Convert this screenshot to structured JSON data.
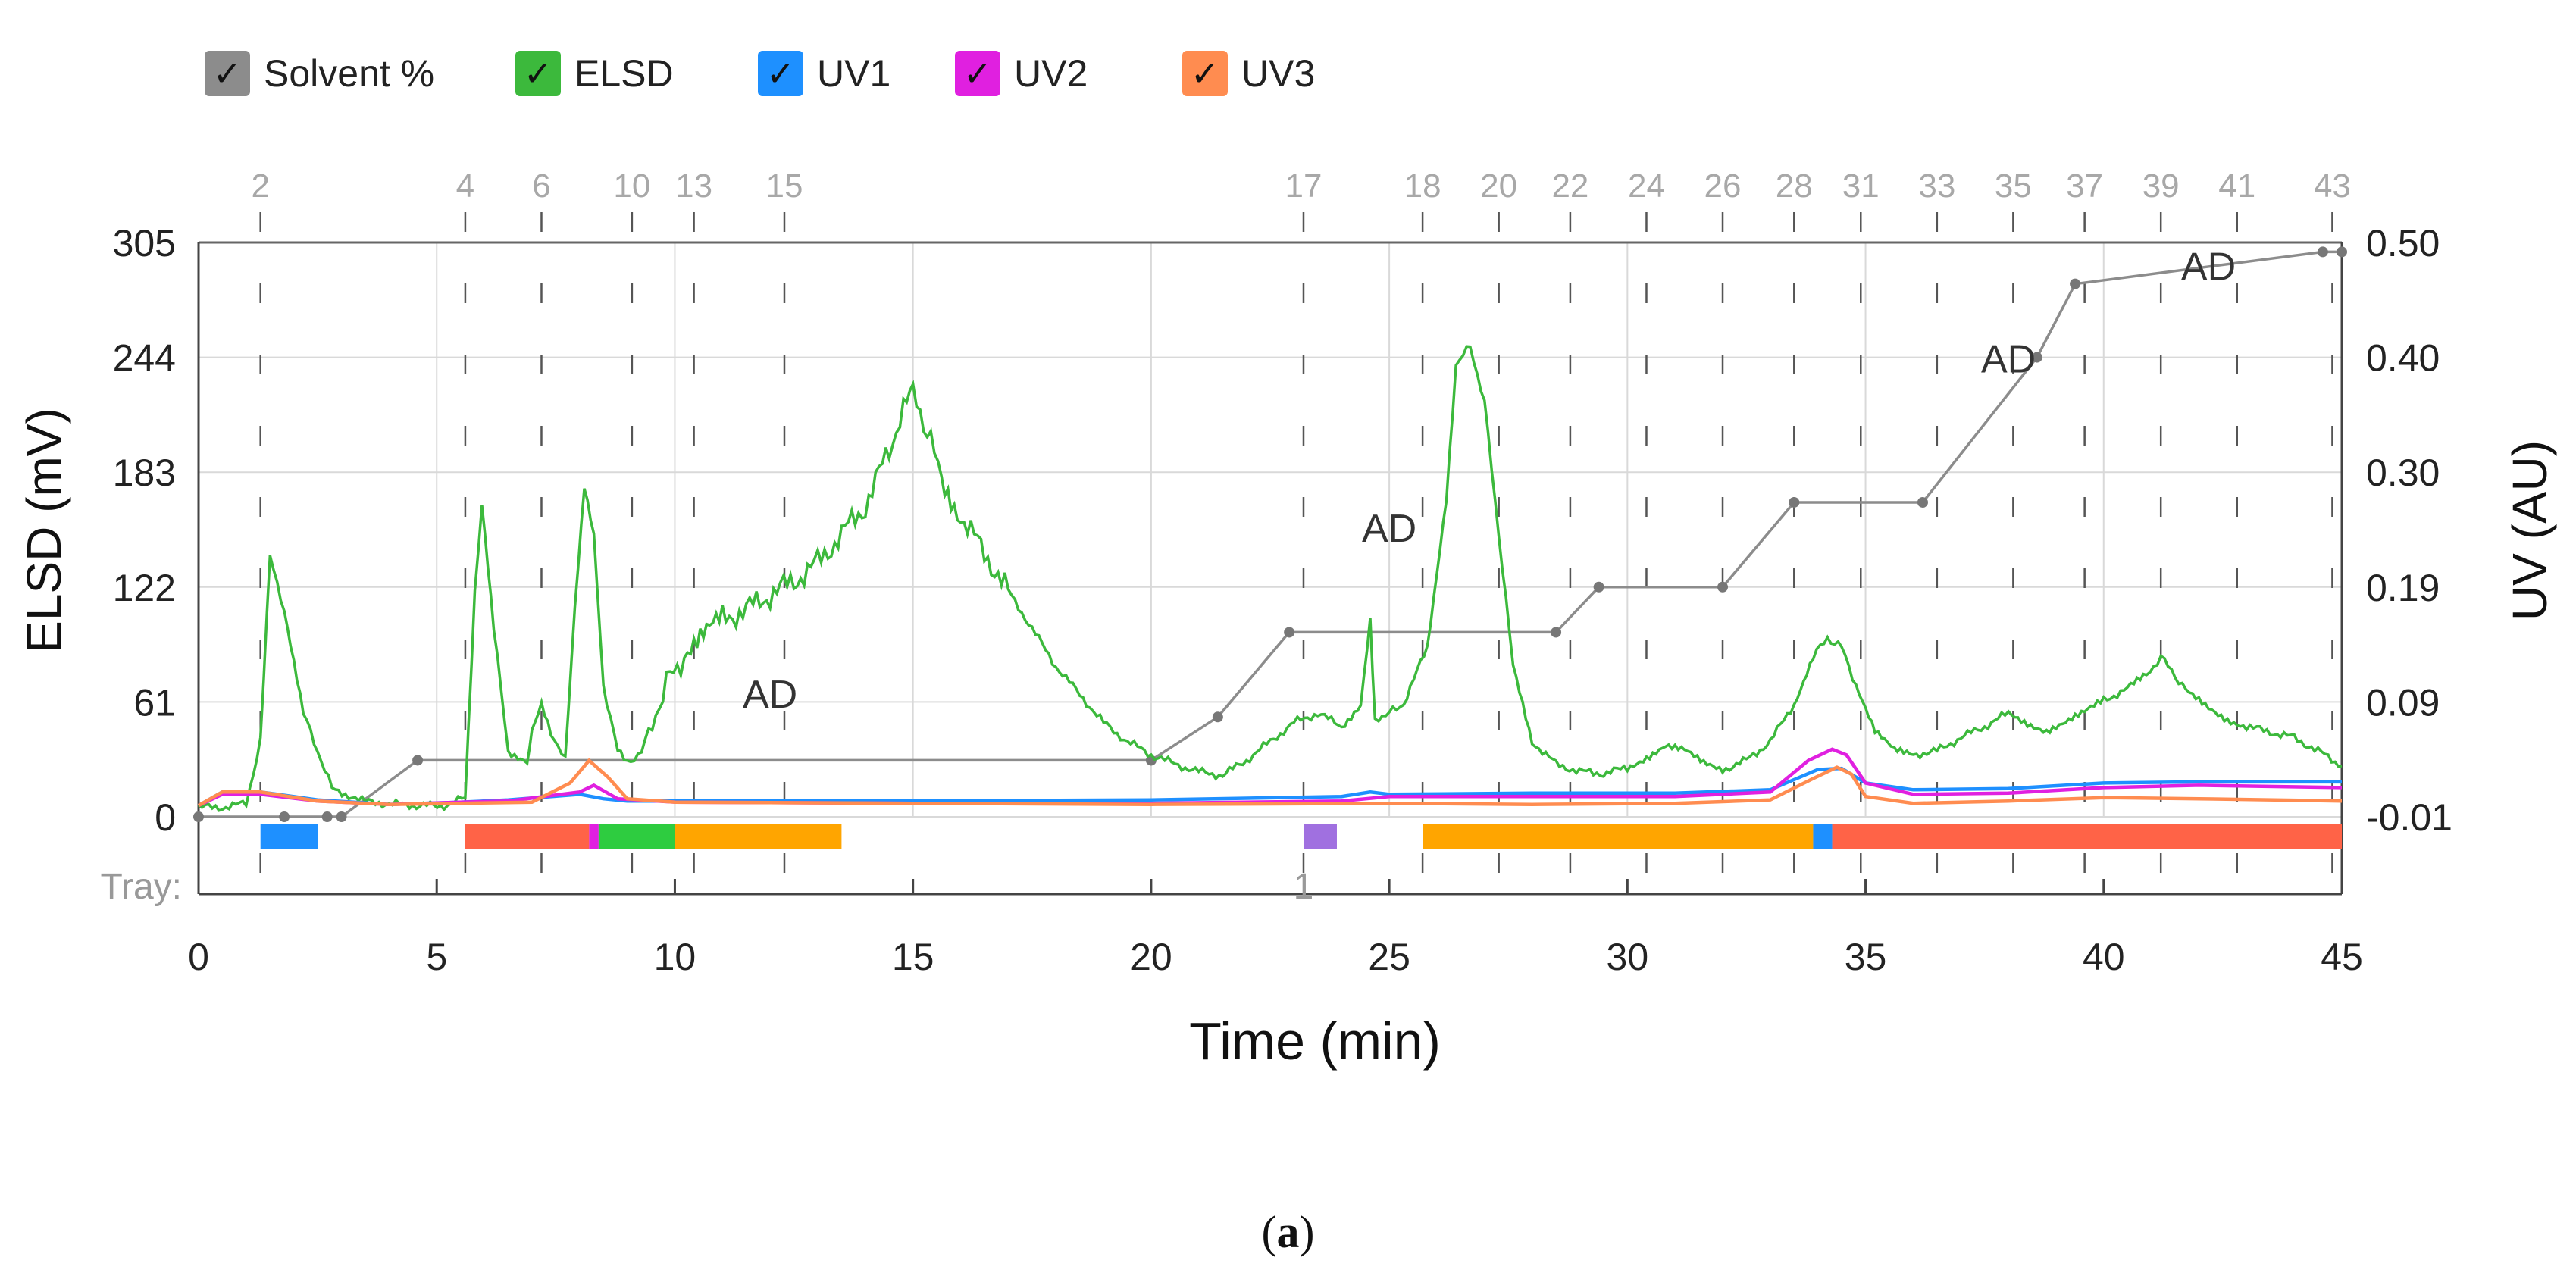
{
  "legend": [
    {
      "name": "Solvent %",
      "color": "#8c8c8c",
      "check": "✓"
    },
    {
      "name": "ELSD",
      "color": "#3cb93c",
      "check": "✓"
    },
    {
      "name": "UV1",
      "color": "#1e90ff",
      "check": "✓"
    },
    {
      "name": "UV2",
      "color": "#e020e0",
      "check": "✓"
    },
    {
      "name": "UV3",
      "color": "#ff8c50",
      "check": "✓"
    }
  ],
  "caption": {
    "open": "(",
    "letter": "a",
    "close": ")"
  },
  "chart_data": {
    "type": "line",
    "xlabel": "Time (min)",
    "ylabel": "ELSD (mV)",
    "y2label": "UV (AU)",
    "tray_label": "Tray:",
    "tray_numbers": [
      {
        "x": 23.2,
        "label": "1"
      }
    ],
    "xlim": [
      0,
      45
    ],
    "ylim": [
      0,
      305
    ],
    "xticks": [
      0,
      5,
      10,
      15,
      20,
      25,
      30,
      35,
      40,
      45
    ],
    "yticks": [
      0,
      61,
      122,
      183,
      244,
      305
    ],
    "y2ticks": [
      "-0.01",
      "0.09",
      "0.19",
      "0.30",
      "0.40",
      "0.50"
    ],
    "fractions": [
      {
        "label": "2",
        "x": 1.3
      },
      {
        "label": "4",
        "x": 5.6
      },
      {
        "label": "6",
        "x": 7.2
      },
      {
        "label": "10",
        "x": 9.1
      },
      {
        "label": "13",
        "x": 10.4
      },
      {
        "label": "15",
        "x": 12.3
      },
      {
        "label": "17",
        "x": 23.2
      },
      {
        "label": "18",
        "x": 25.7
      },
      {
        "label": "20",
        "x": 27.3
      },
      {
        "label": "22",
        "x": 28.8
      },
      {
        "label": "24",
        "x": 30.4
      },
      {
        "label": "26",
        "x": 32.0
      },
      {
        "label": "28",
        "x": 33.5
      },
      {
        "label": "31",
        "x": 34.9
      },
      {
        "label": "33",
        "x": 36.5
      },
      {
        "label": "35",
        "x": 38.1
      },
      {
        "label": "37",
        "x": 39.6
      },
      {
        "label": "39",
        "x": 41.2
      },
      {
        "label": "41",
        "x": 42.8
      },
      {
        "label": "43",
        "x": 44.8
      }
    ],
    "annotations": [
      {
        "text": "AD",
        "x": 12.0,
        "y": 58
      },
      {
        "text": "AD",
        "x": 25.0,
        "y": 146
      },
      {
        "text": "AD",
        "x": 38.0,
        "y": 236
      },
      {
        "text": "AD",
        "x": 42.2,
        "y": 285
      }
    ],
    "tray_bars": [
      {
        "x0": 1.3,
        "x1": 2.5,
        "color": "#1e90ff"
      },
      {
        "x0": 5.6,
        "x1": 8.2,
        "color": "#ff6347"
      },
      {
        "x0": 8.2,
        "x1": 8.4,
        "color": "#e020e0"
      },
      {
        "x0": 8.4,
        "x1": 10.0,
        "color": "#2ecc40"
      },
      {
        "x0": 10.0,
        "x1": 13.5,
        "color": "#ffa500"
      },
      {
        "x0": 23.2,
        "x1": 23.9,
        "color": "#a070e0"
      },
      {
        "x0": 25.7,
        "x1": 33.9,
        "color": "#ffa500"
      },
      {
        "x0": 33.9,
        "x1": 34.3,
        "color": "#1e90ff"
      },
      {
        "x0": 34.3,
        "x1": 34.5,
        "color": "#ff6347"
      },
      {
        "x0": 34.5,
        "x1": 45.0,
        "color": "#ff6347"
      }
    ],
    "series": [
      {
        "name": "Solvent %",
        "color": "#8c8c8c",
        "step_points": [
          [
            0,
            0
          ],
          [
            1.8,
            0
          ],
          [
            2.7,
            0
          ],
          [
            3.0,
            0
          ],
          [
            4.6,
            30
          ],
          [
            20.0,
            30
          ],
          [
            21.4,
            53
          ],
          [
            22.9,
            98
          ],
          [
            28.5,
            98
          ],
          [
            29.4,
            122
          ],
          [
            32.0,
            122
          ],
          [
            33.5,
            167
          ],
          [
            36.2,
            167
          ],
          [
            38.6,
            244
          ],
          [
            39.4,
            283
          ],
          [
            44.6,
            300
          ],
          [
            45.0,
            300
          ]
        ]
      },
      {
        "name": "ELSD",
        "color": "#3cb93c",
        "x": [
          0,
          0.5,
          1.0,
          1.3,
          1.5,
          1.8,
          2.2,
          2.8,
          3.5,
          4.5,
          5.3,
          5.6,
          5.8,
          5.95,
          6.2,
          6.5,
          6.9,
          7.0,
          7.2,
          7.4,
          7.7,
          7.9,
          8.1,
          8.3,
          8.5,
          8.8,
          9.0,
          9.3,
          9.6,
          9.9,
          10.2,
          10.6,
          11.0,
          11.5,
          12.0,
          12.5,
          13.0,
          13.5,
          14.0,
          14.5,
          14.8,
          15.0,
          15.3,
          15.6,
          16.0,
          16.5,
          17.0,
          17.5,
          18.0,
          18.5,
          19.0,
          19.5,
          20.0,
          20.5,
          21.0,
          21.5,
          22.0,
          22.5,
          23.0,
          23.5,
          24.0,
          24.4,
          24.6,
          24.7,
          25.0,
          25.3,
          25.8,
          26.2,
          26.4,
          26.7,
          27.0,
          27.3,
          27.6,
          28.0,
          28.5,
          29.0,
          29.5,
          30.0,
          30.4,
          30.8,
          31.2,
          31.6,
          32.0,
          32.5,
          33.0,
          33.5,
          33.9,
          34.2,
          34.5,
          34.8,
          35.2,
          35.6,
          36.0,
          36.5,
          37.0,
          37.5,
          38.0,
          38.4,
          38.8,
          39.2,
          39.6,
          40.0,
          40.5,
          40.9,
          41.2,
          41.5,
          41.8,
          42.2,
          42.6,
          43.0,
          43.5,
          44.0,
          44.5,
          45.0
        ],
        "y": [
          5,
          5,
          7,
          40,
          138,
          110,
          55,
          15,
          8,
          6,
          6,
          12,
          120,
          165,
          100,
          35,
          30,
          45,
          60,
          45,
          30,
          110,
          175,
          150,
          70,
          35,
          28,
          35,
          55,
          75,
          85,
          95,
          105,
          110,
          118,
          125,
          135,
          150,
          165,
          195,
          215,
          225,
          205,
          180,
          160,
          140,
          120,
          100,
          80,
          65,
          50,
          40,
          33,
          28,
          24,
          22,
          30,
          40,
          50,
          55,
          48,
          60,
          105,
          52,
          55,
          60,
          90,
          170,
          240,
          250,
          220,
          150,
          80,
          40,
          28,
          24,
          23,
          26,
          32,
          38,
          35,
          28,
          25,
          30,
          40,
          60,
          85,
          95,
          90,
          70,
          45,
          35,
          33,
          35,
          42,
          48,
          55,
          50,
          46,
          50,
          55,
          62,
          68,
          75,
          85,
          75,
          65,
          58,
          52,
          48,
          45,
          42,
          35,
          27
        ]
      },
      {
        "name": "UV1",
        "color": "#1e90ff",
        "x": [
          0,
          0.5,
          1.3,
          2.5,
          4.0,
          5.5,
          6.5,
          8.0,
          8.5,
          9.0,
          10.0,
          15.0,
          20.0,
          24.0,
          24.6,
          25.0,
          28.0,
          31.0,
          33.0,
          34.0,
          34.5,
          35.0,
          36.0,
          38.0,
          40.0,
          42.0,
          45.0
        ],
        "y": [
          0.0,
          0.012,
          0.012,
          0.005,
          0.001,
          0.003,
          0.005,
          0.01,
          0.006,
          0.004,
          0.004,
          0.004,
          0.005,
          0.008,
          0.012,
          0.01,
          0.011,
          0.011,
          0.014,
          0.032,
          0.033,
          0.02,
          0.014,
          0.015,
          0.02,
          0.021,
          0.021
        ]
      },
      {
        "name": "UV2",
        "color": "#e020e0",
        "x": [
          0,
          0.5,
          1.3,
          2.5,
          4.0,
          5.5,
          6.5,
          8.0,
          8.3,
          8.8,
          10.0,
          15.0,
          20.0,
          24.0,
          25.0,
          28.0,
          31.0,
          33.0,
          33.8,
          34.3,
          34.6,
          35.0,
          36.0,
          38.0,
          40.0,
          42.0,
          45.0
        ],
        "y": [
          0.0,
          0.01,
          0.01,
          0.004,
          0.001,
          0.003,
          0.004,
          0.012,
          0.018,
          0.006,
          0.003,
          0.002,
          0.002,
          0.004,
          0.008,
          0.008,
          0.008,
          0.012,
          0.04,
          0.05,
          0.045,
          0.02,
          0.01,
          0.011,
          0.016,
          0.018,
          0.016
        ]
      },
      {
        "name": "UV3",
        "color": "#ff8c50",
        "x": [
          0,
          0.5,
          1.3,
          2.5,
          4.0,
          5.5,
          7.0,
          7.8,
          8.2,
          8.6,
          9.0,
          10.0,
          15.0,
          20.0,
          25.0,
          28.0,
          31.0,
          33.0,
          33.9,
          34.4,
          34.7,
          35.0,
          36.0,
          38.0,
          40.0,
          42.0,
          45.0
        ],
        "y": [
          0.0,
          0.012,
          0.012,
          0.004,
          0.001,
          0.002,
          0.003,
          0.02,
          0.04,
          0.025,
          0.006,
          0.003,
          0.002,
          0.001,
          0.002,
          0.001,
          0.002,
          0.005,
          0.024,
          0.034,
          0.028,
          0.008,
          0.002,
          0.004,
          0.007,
          0.006,
          0.004
        ]
      }
    ]
  }
}
